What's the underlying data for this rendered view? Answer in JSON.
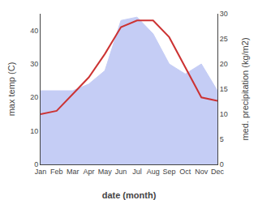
{
  "chart_data": {
    "type": "line",
    "categories": [
      "Jan",
      "Feb",
      "Mar",
      "Apr",
      "May",
      "Jun",
      "Jul",
      "Aug",
      "Sep",
      "Oct",
      "Nov",
      "Dec"
    ],
    "xlabel": "date (month)",
    "ylabel": "max temp (C)",
    "y2label": "med. precipitation (kg/m2)",
    "ylim": [
      0,
      45
    ],
    "yticks": [
      0,
      10,
      20,
      30,
      40
    ],
    "y2lim": [
      0,
      30
    ],
    "y2ticks": [
      0,
      5,
      10,
      15,
      20,
      25,
      30
    ],
    "grid": false,
    "series": [
      {
        "type": "area",
        "color": "#c5cdf5",
        "values": [
          22,
          22,
          22,
          24,
          28,
          43,
          44,
          39,
          30,
          27,
          30,
          22
        ]
      },
      {
        "type": "line",
        "color": "#cc3333",
        "values": [
          15,
          16,
          21,
          26,
          33,
          41,
          43,
          43,
          38,
          29,
          20,
          19
        ]
      }
    ]
  }
}
